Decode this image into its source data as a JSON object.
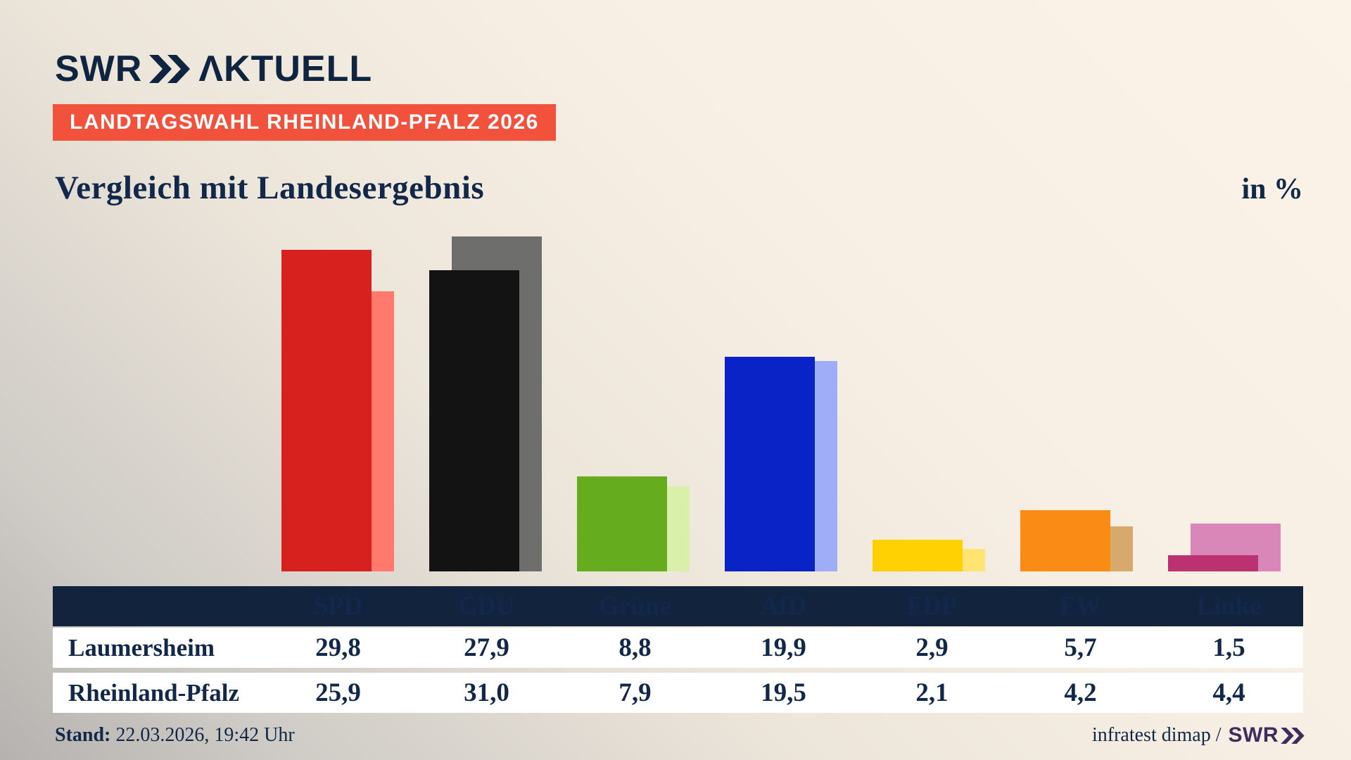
{
  "header": {
    "logo": {
      "brand": "SWR",
      "suffix": "ΛKTUELL"
    },
    "badge": "LANDTAGSWAHL RHEINLAND-PFALZ 2026",
    "title": "Vergleich mit Landesergebnis",
    "unit_label": "in %"
  },
  "chart_data": {
    "type": "bar",
    "title": "Vergleich mit Landesergebnis",
    "unit": "%",
    "categories": [
      "SPD",
      "CDU",
      "Grüne",
      "AfD",
      "FDP",
      "FW",
      "Linke"
    ],
    "series": [
      {
        "name": "Laumersheim",
        "values": [
          29.8,
          27.9,
          8.8,
          19.9,
          2.9,
          5.7,
          1.5
        ],
        "colors": [
          "#d6211e",
          "#131313",
          "#66ac1f",
          "#0a23c7",
          "#ffd002",
          "#fa8c16",
          "#bc3171"
        ]
      },
      {
        "name": "Rheinland-Pfalz",
        "values": [
          25.9,
          31.0,
          7.9,
          19.5,
          2.1,
          4.2,
          4.4
        ],
        "colors": [
          "#ff7a6d",
          "#6e6e6d",
          "#d9f0ab",
          "#9fadf8",
          "#ffe472",
          "#d8a96c",
          "#d987b9"
        ]
      }
    ],
    "ylim": [
      0,
      31
    ],
    "grid": false,
    "legend_position": "table-below-chart",
    "xlabel": "",
    "ylabel": "in %"
  },
  "table": {
    "columns": [
      "SPD",
      "CDU",
      "Grüne",
      "AfD",
      "FDP",
      "FW",
      "Linke"
    ],
    "rows": [
      {
        "label": "Laumersheim",
        "values": [
          "29,8",
          "27,9",
          "8,8",
          "19,9",
          "2,9",
          "5,7",
          "1,5"
        ]
      },
      {
        "label": "Rheinland-Pfalz",
        "values": [
          "25,9",
          "31,0",
          "7,9",
          "19,5",
          "2,1",
          "4,2",
          "4,4"
        ]
      }
    ]
  },
  "footer": {
    "stand_label": "Stand:",
    "stand_value": " 22.03.2026, 19:42 Uhr",
    "source_text": "infratest dimap /",
    "source_brand": "SWR"
  },
  "colors": {
    "navy_text": "#11284a",
    "table_header_bg": "#12233e",
    "badge_red": "#f2513c",
    "brand_navy": "#0e2440",
    "source_brand_purple": "#3f2c5f",
    "background_cream": "#f8f0e4",
    "background_gray": "#b5b2af"
  }
}
